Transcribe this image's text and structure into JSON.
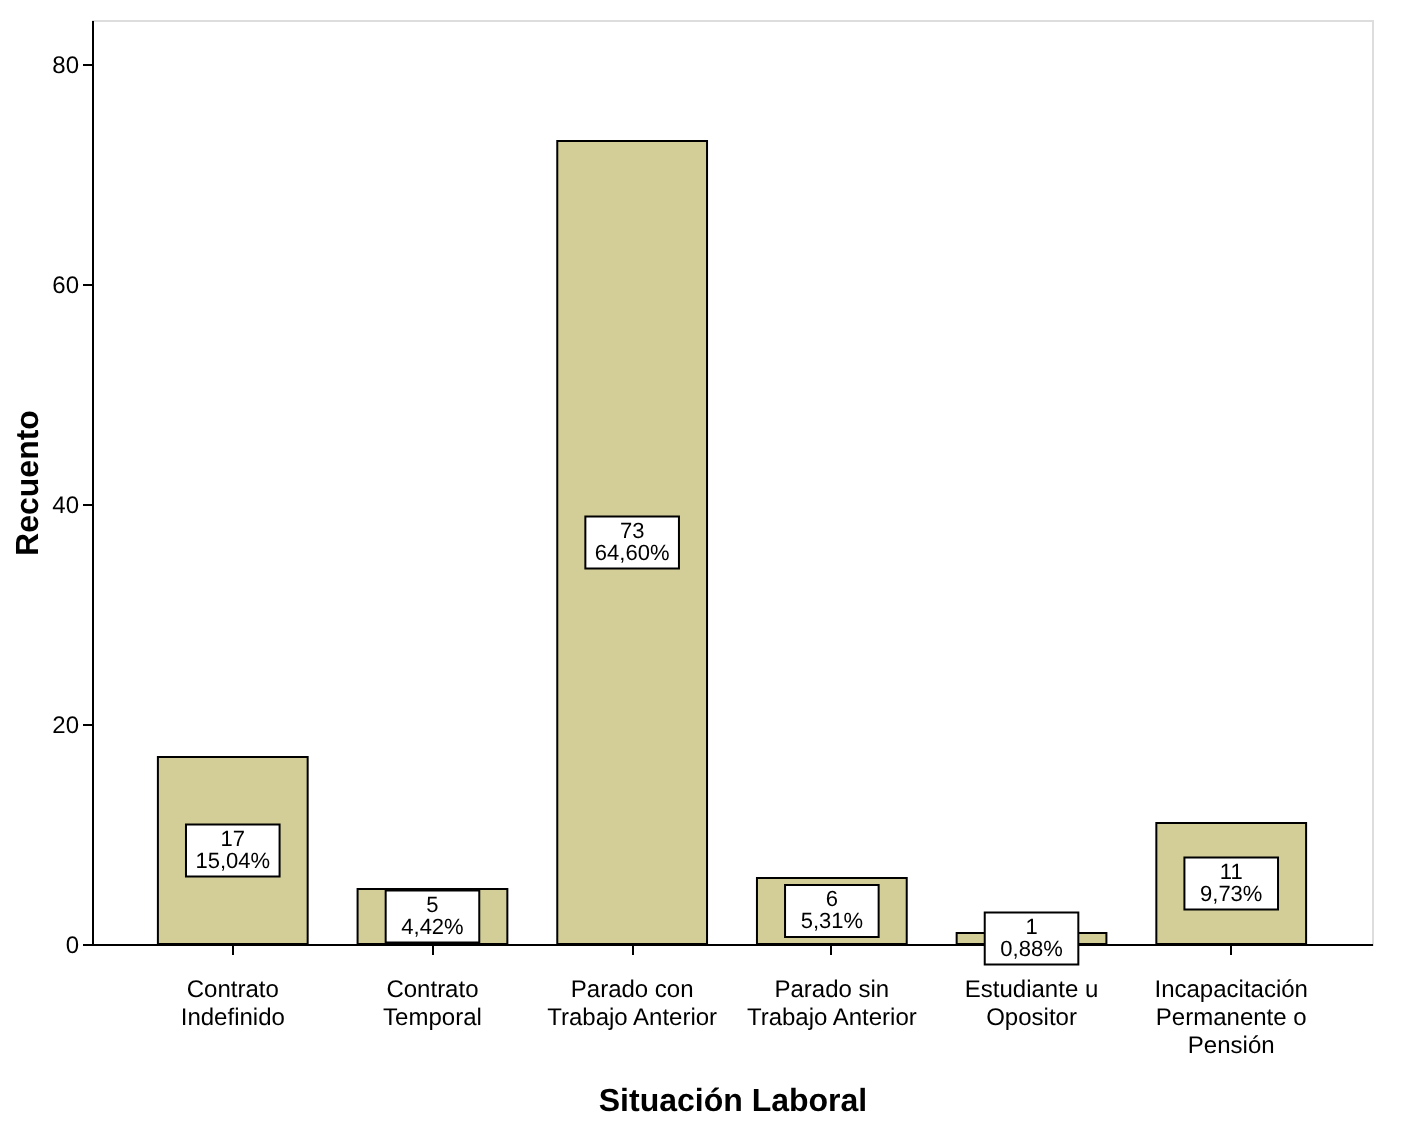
{
  "chart_data": {
    "type": "bar",
    "xlabel": "Situación Laboral",
    "ylabel": "Recuento",
    "categories": [
      "Contrato\nIndefinido",
      "Contrato\nTemporal",
      "Parado con\nTrabajo Anterior",
      "Parado sin\nTrabajo Anterior",
      "Estudiante u\nOpositor",
      "Incapacitación\nPermanente o\nPensión"
    ],
    "values": [
      17,
      5,
      73,
      6,
      1,
      11
    ],
    "value_labels": [
      "17\n15,04%",
      "5\n4,42%",
      "73\n64,60%",
      "6\n5,31%",
      "1\n0,88%",
      "11\n9,73%"
    ],
    "color": "#d3ce97",
    "ylim": [
      0,
      84
    ],
    "yticks": [
      0,
      20,
      40,
      60,
      80
    ],
    "grid": false
  }
}
